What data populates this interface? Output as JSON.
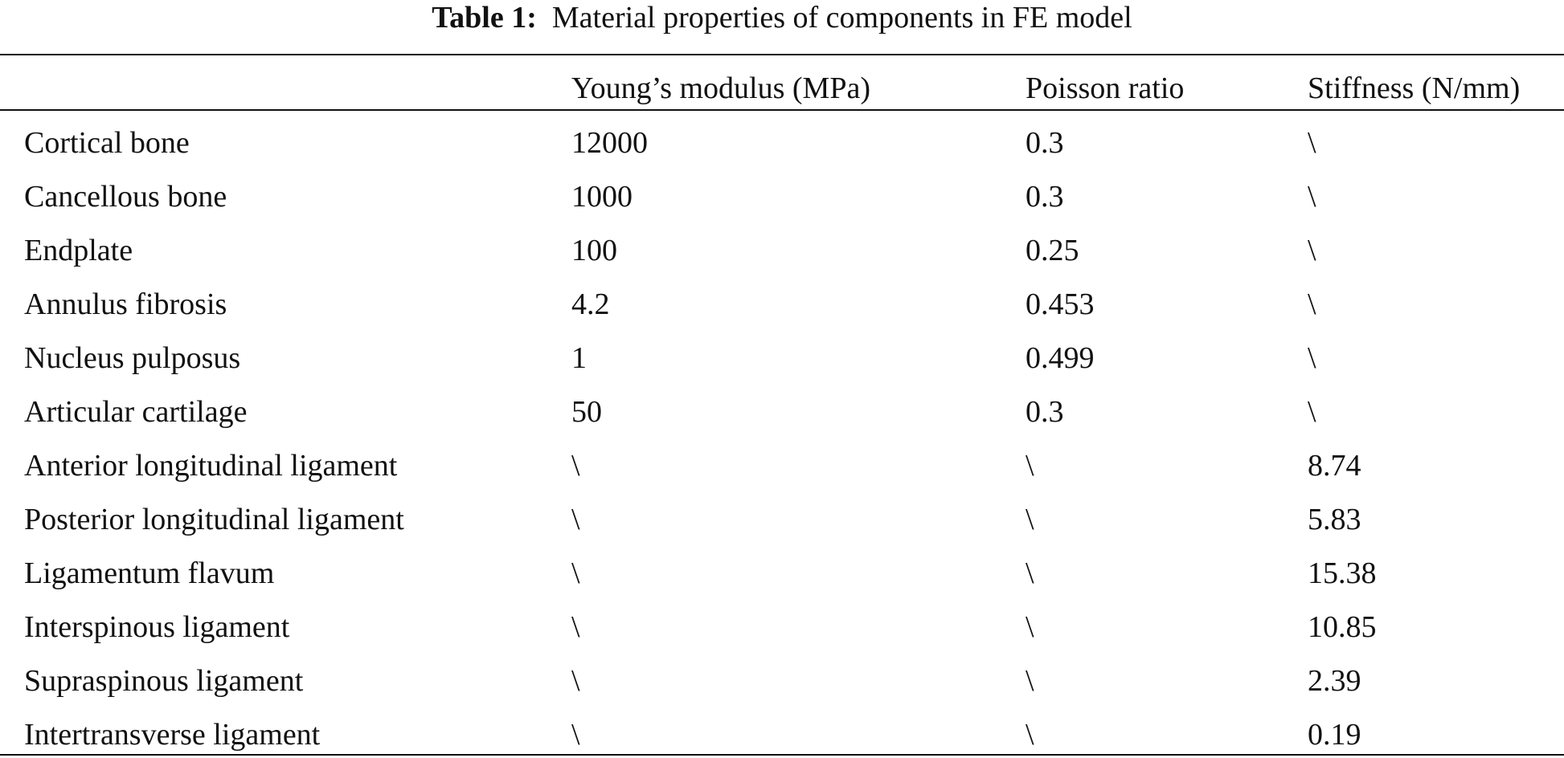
{
  "table": {
    "label": "Table 1:",
    "title": "Material properties of components in FE model",
    "columns": [
      "",
      "Young’s modulus (MPa)",
      "Poisson ratio",
      "Stiffness (N/mm)"
    ],
    "rows": [
      [
        "Cortical bone",
        "12000",
        "0.3",
        "\\"
      ],
      [
        "Cancellous bone",
        "1000",
        "0.3",
        "\\"
      ],
      [
        "Endplate",
        "100",
        "0.25",
        "\\"
      ],
      [
        "Annulus fibrosis",
        "4.2",
        "0.453",
        "\\"
      ],
      [
        "Nucleus pulposus",
        "1",
        "0.499",
        "\\"
      ],
      [
        "Articular cartilage",
        "50",
        "0.3",
        "\\"
      ],
      [
        "Anterior longitudinal ligament",
        "\\",
        "\\",
        "8.74"
      ],
      [
        "Posterior longitudinal ligament",
        "\\",
        "\\",
        "5.83"
      ],
      [
        "Ligamentum flavum",
        "\\",
        "\\",
        "15.38"
      ],
      [
        "Interspinous ligament",
        "\\",
        "\\",
        "10.85"
      ],
      [
        "Supraspinous ligament",
        "\\",
        "\\",
        "2.39"
      ],
      [
        "Intertransverse ligament",
        "\\",
        "\\",
        "0.19"
      ]
    ]
  }
}
